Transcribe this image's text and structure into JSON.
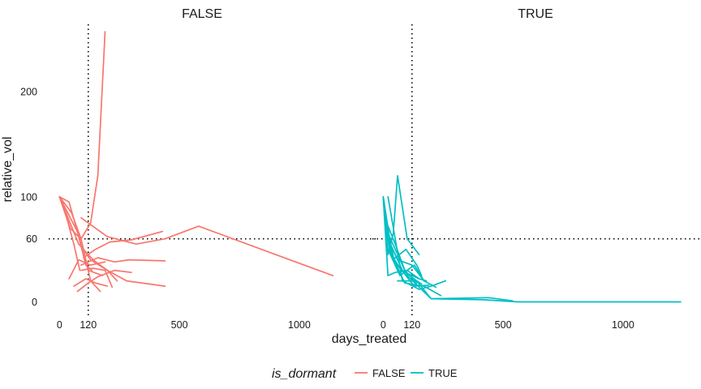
{
  "chart_data": {
    "type": "line",
    "facet_variable": "is_dormant",
    "xlabel": "days_treated",
    "ylabel": "relative_vol",
    "xlim": [
      -45,
      1325
    ],
    "ylim": [
      -15,
      264
    ],
    "x_ticks": [
      0,
      120,
      500,
      1000
    ],
    "x_tick_labels": [
      "0",
      "120",
      "500",
      "1000"
    ],
    "y_ticks": [
      0,
      60,
      100,
      200
    ],
    "y_tick_labels": [
      "0",
      "60",
      "100",
      "200"
    ],
    "reference_lines": {
      "x": 120,
      "y": 60
    },
    "grid": false,
    "legend": {
      "title": "is_dormant",
      "position": "bottom",
      "entries": [
        {
          "label": "FALSE",
          "color": "#F8766D"
        },
        {
          "label": "TRUE",
          "color": "#00BFC4"
        }
      ]
    },
    "panels": [
      {
        "label": "FALSE",
        "color": "#F8766D",
        "series": [
          {
            "x": [
              0,
              40,
              120,
              180
            ],
            "y": [
              100,
              95,
              30,
              25
            ]
          },
          {
            "x": [
              0,
              50,
              90,
              130,
              170
            ],
            "y": [
              100,
              85,
              60,
              20,
              10
            ]
          },
          {
            "x": [
              0,
              30,
              60,
              85
            ],
            "y": [
              100,
              80,
              55,
              30
            ]
          },
          {
            "x": [
              0,
              90,
              130,
              160,
              190
            ],
            "y": [
              100,
              60,
              75,
              120,
              257
            ]
          },
          {
            "x": [
              0,
              80,
              140,
              200,
              280,
              440
            ],
            "y": [
              100,
              55,
              40,
              30,
              20,
              15
            ]
          },
          {
            "x": [
              90,
              200,
              320,
              440,
              580,
              1140
            ],
            "y": [
              80,
              62,
              55,
              60,
              72,
              25
            ]
          },
          {
            "x": [
              100,
              150,
              210,
              300,
              430
            ],
            "y": [
              42,
              50,
              57,
              59,
              67
            ]
          },
          {
            "x": [
              90,
              160,
              230,
              290,
              440
            ],
            "y": [
              35,
              42,
              38,
              40,
              39
            ]
          },
          {
            "x": [
              40,
              80,
              130,
              190
            ],
            "y": [
              22,
              40,
              35,
              38
            ]
          },
          {
            "x": [
              60,
              110,
              150,
              200
            ],
            "y": [
              15,
              22,
              18,
              15
            ]
          },
          {
            "x": [
              75,
              120,
              160,
              230,
              300
            ],
            "y": [
              10,
              18,
              24,
              30,
              28
            ]
          },
          {
            "x": [
              90,
              140,
              190,
              220
            ],
            "y": [
              30,
              32,
              30,
              14
            ]
          },
          {
            "x": [
              100,
              130,
              200,
              240
            ],
            "y": [
              50,
              40,
              30,
              20
            ]
          },
          {
            "x": [
              0,
              45,
              80,
              110,
              135
            ],
            "y": [
              100,
              70,
              62,
              35,
              30
            ]
          }
        ]
      },
      {
        "label": "TRUE",
        "color": "#00BFC4",
        "series": [
          {
            "x": [
              0,
              20,
              42,
              60,
              100,
              150
            ],
            "y": [
              100,
              45,
              65,
              120,
              60,
              45
            ]
          },
          {
            "x": [
              0,
              40,
              95,
              140,
              160
            ],
            "y": [
              100,
              40,
              50,
              35,
              25
            ]
          },
          {
            "x": [
              0,
              20,
              60,
              120,
              170
            ],
            "y": [
              100,
              60,
              40,
              35,
              20
            ]
          },
          {
            "x": [
              0,
              30,
              80,
              140,
              160
            ],
            "y": [
              100,
              55,
              30,
              20,
              17
            ]
          },
          {
            "x": [
              0,
              15,
              50,
              90,
              140
            ],
            "y": [
              100,
              75,
              55,
              30,
              18
            ]
          },
          {
            "x": [
              0,
              20,
              50,
              100,
              150
            ],
            "y": [
              100,
              25,
              28,
              30,
              22
            ]
          },
          {
            "x": [
              0,
              25,
              60,
              130,
              190
            ],
            "y": [
              100,
              50,
              35,
              15,
              16
            ]
          },
          {
            "x": [
              0,
              35,
              75,
              120,
              150,
              180
            ],
            "y": [
              100,
              45,
              30,
              25,
              22,
              20
            ]
          },
          {
            "x": [
              5,
              45,
              90,
              170,
              240
            ],
            "y": [
              85,
              40,
              18,
              15,
              6
            ]
          },
          {
            "x": [
              20,
              80,
              150,
              200,
              260
            ],
            "y": [
              100,
              20,
              12,
              15,
              20
            ]
          },
          {
            "x": [
              20,
              70,
              130,
              170,
              220
            ],
            "y": [
              50,
              25,
              35,
              20,
              14
            ]
          },
          {
            "x": [
              60,
              140,
              200,
              440,
              540
            ],
            "y": [
              20,
              20,
              3,
              4,
              1
            ]
          },
          {
            "x": [
              10,
              100,
              200,
              420,
              560,
              1240
            ],
            "y": [
              70,
              25,
              3,
              2,
              0,
              0
            ]
          }
        ]
      }
    ]
  }
}
